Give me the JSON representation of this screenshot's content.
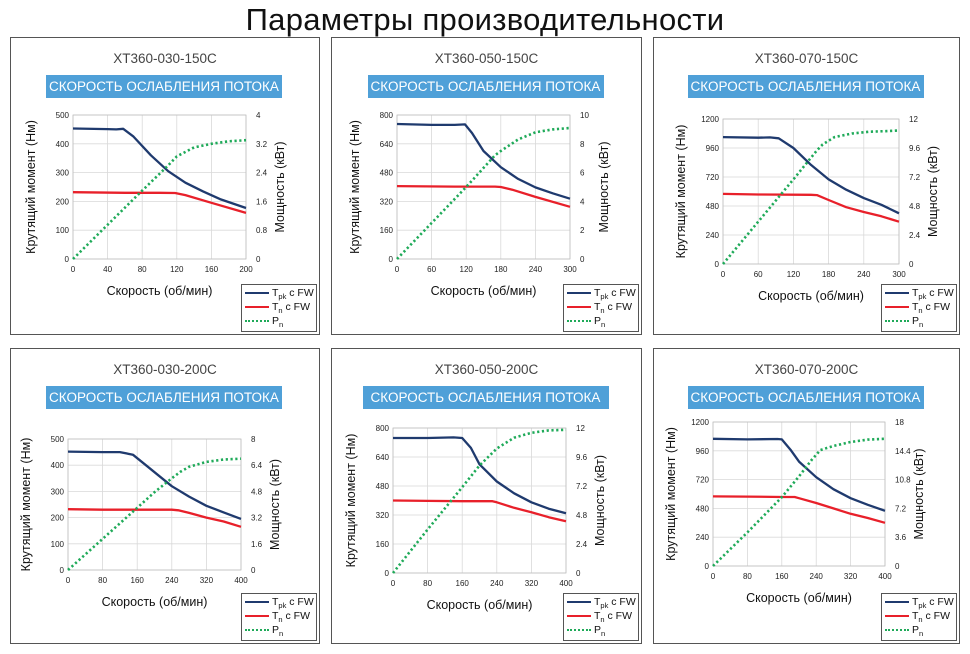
{
  "page": {
    "title": "Параметры производительности"
  },
  "legend": {
    "tpk": "pk",
    "tn": "n",
    "pn": "n",
    "suffix": " с FW",
    "T": "T",
    "P": "P"
  },
  "colors": {
    "tpk": "#1f3a6e",
    "tn": "#e8202a",
    "pn": "#1faa59",
    "banner": "#4fa0d8"
  },
  "chart_data": [
    {
      "type": "line",
      "title": "XT360-030-150C",
      "banner": "СКОРОСТЬ ОСЛАБЛЕНИЯ ПОТОКА",
      "xlabel": "Скорость (об/мин)",
      "ylabel": "Крутящий момент (Нм)",
      "y2label": "Мощность (кВт)",
      "xlim": [
        0,
        200
      ],
      "xticks": [
        0,
        40,
        80,
        120,
        160,
        200
      ],
      "ylim": [
        0,
        500
      ],
      "yticks": [
        0,
        100,
        200,
        300,
        400,
        500
      ],
      "y2lim": [
        0,
        4
      ],
      "y2ticks": [
        "0",
        "0.8",
        "1.6",
        "2.4",
        "3.2",
        "4"
      ],
      "series": [
        {
          "name": "Tpk с FW",
          "axis": "y",
          "x": [
            0,
            40,
            50,
            58,
            70,
            90,
            110,
            130,
            150,
            170,
            200
          ],
          "y": [
            453,
            451,
            450,
            452,
            425,
            360,
            305,
            265,
            235,
            208,
            177
          ]
        },
        {
          "name": "Tn с FW",
          "axis": "y",
          "x": [
            0,
            60,
            100,
            118,
            130,
            160,
            200
          ],
          "y": [
            232,
            230,
            230,
            229,
            222,
            195,
            160
          ]
        },
        {
          "name": "Pn",
          "axis": "y2",
          "x": [
            0,
            40,
            80,
            110,
            120,
            140,
            160,
            180,
            200
          ],
          "y": [
            0,
            0.95,
            1.9,
            2.6,
            2.85,
            3.1,
            3.2,
            3.27,
            3.3
          ]
        }
      ]
    },
    {
      "type": "line",
      "title": "XT360-050-150C",
      "banner": "СКОРОСТЬ ОСЛАБЛЕНИЯ ПОТОКА",
      "xlabel": "Скорость (об/мин)",
      "ylabel": "Крутящий момент (Нм)",
      "y2label": "Мощность (кВт)",
      "xlim": [
        0,
        300
      ],
      "xticks": [
        0,
        60,
        120,
        180,
        240,
        300
      ],
      "ylim": [
        0,
        800
      ],
      "yticks": [
        0,
        160,
        320,
        480,
        640,
        800
      ],
      "y2lim": [
        0,
        10
      ],
      "y2ticks": [
        "0",
        "2",
        "4",
        "6",
        "8",
        "10"
      ],
      "series": [
        {
          "name": "Tpk с FW",
          "axis": "y",
          "x": [
            0,
            60,
            100,
            118,
            130,
            150,
            180,
            210,
            240,
            270,
            300
          ],
          "y": [
            750,
            745,
            745,
            748,
            700,
            600,
            510,
            445,
            398,
            365,
            335
          ]
        },
        {
          "name": "Tn с FW",
          "axis": "y",
          "x": [
            0,
            100,
            170,
            180,
            200,
            240,
            300
          ],
          "y": [
            405,
            402,
            402,
            400,
            385,
            345,
            290
          ]
        },
        {
          "name": "Pn",
          "axis": "y2",
          "x": [
            0,
            60,
            120,
            170,
            180,
            210,
            240,
            270,
            300
          ],
          "y": [
            0,
            2.5,
            5.0,
            7.2,
            7.5,
            8.3,
            8.8,
            9.0,
            9.1
          ]
        }
      ]
    },
    {
      "type": "line",
      "title": "XT360-070-150C",
      "banner": "СКОРОСТЬ ОСЛАБЛЕНИЯ ПОТОКА",
      "xlabel": "Скорость (об/мин)",
      "ylabel": "Крутящий момент (Нм)",
      "y2label": "Мощность (кВт)",
      "xlim": [
        0,
        300
      ],
      "xticks": [
        0,
        60,
        120,
        180,
        240,
        300
      ],
      "ylim": [
        0,
        1200
      ],
      "yticks": [
        0,
        240,
        480,
        720,
        960,
        1200
      ],
      "y2lim": [
        0,
        12
      ],
      "y2ticks": [
        "0",
        "2.4",
        "4.8",
        "7.2",
        "9.6",
        "12"
      ],
      "series": [
        {
          "name": "Tpk с FW",
          "axis": "y",
          "x": [
            0,
            60,
            80,
            95,
            120,
            150,
            180,
            210,
            240,
            270,
            300
          ],
          "y": [
            1050,
            1045,
            1048,
            1040,
            960,
            820,
            700,
            615,
            545,
            490,
            420
          ]
        },
        {
          "name": "Tn с FW",
          "axis": "y",
          "x": [
            0,
            60,
            150,
            160,
            180,
            210,
            240,
            270,
            300
          ],
          "y": [
            580,
            575,
            573,
            570,
            530,
            470,
            430,
            395,
            350
          ]
        },
        {
          "name": "Pn",
          "axis": "y2",
          "x": [
            0,
            60,
            120,
            160,
            170,
            190,
            220,
            250,
            280,
            300
          ],
          "y": [
            0,
            3.5,
            7.0,
            9.4,
            9.9,
            10.5,
            10.8,
            10.95,
            11.0,
            11.05
          ]
        }
      ]
    },
    {
      "type": "line",
      "title": "XT360-030-200C",
      "banner": "СКОРОСТЬ ОСЛАБЛЕНИЯ ПОТОКА",
      "xlabel": "Скорость (об/мин)",
      "ylabel": "Крутящий момент (Нм)",
      "y2label": "Мощность (кВт)",
      "xlim": [
        0,
        400
      ],
      "xticks": [
        0,
        80,
        160,
        240,
        320,
        400
      ],
      "ylim": [
        0,
        500
      ],
      "yticks": [
        0,
        100,
        200,
        300,
        400,
        500
      ],
      "y2lim": [
        0,
        8
      ],
      "y2ticks": [
        "0",
        "1.6",
        "3.2",
        "4.8",
        "6.4",
        "8"
      ],
      "series": [
        {
          "name": "Tpk с FW",
          "axis": "y",
          "x": [
            0,
            80,
            120,
            150,
            180,
            210,
            240,
            280,
            320,
            360,
            400
          ],
          "y": [
            452,
            450,
            450,
            440,
            400,
            360,
            320,
            280,
            245,
            220,
            195
          ]
        },
        {
          "name": "Tn с FW",
          "axis": "y",
          "x": [
            0,
            80,
            160,
            240,
            255,
            280,
            320,
            360,
            400
          ],
          "y": [
            232,
            230,
            230,
            230,
            228,
            218,
            200,
            185,
            165
          ]
        },
        {
          "name": "Pn",
          "axis": "y2",
          "x": [
            0,
            80,
            160,
            200,
            240,
            260,
            280,
            320,
            360,
            400
          ],
          "y": [
            0,
            1.9,
            3.8,
            4.75,
            5.6,
            6.0,
            6.3,
            6.6,
            6.75,
            6.8
          ]
        }
      ]
    },
    {
      "type": "line",
      "title": "XT360-050-200C",
      "banner": "СКОРОСТЬ ОСЛАБЛЕНИЯ ПОТОКА",
      "xlabel": "Скорость (об/мин)",
      "ylabel": "Крутящий момент (Нм)",
      "y2label": "Мощность (кВт)",
      "xlim": [
        0,
        400
      ],
      "xticks": [
        0,
        80,
        160,
        240,
        320,
        400
      ],
      "ylim": [
        0,
        800
      ],
      "yticks": [
        0,
        160,
        320,
        480,
        640,
        800
      ],
      "y2lim": [
        0,
        12
      ],
      "y2ticks": [
        "0",
        "2.4",
        "4.8",
        "7.2",
        "9.6",
        "12"
      ],
      "series": [
        {
          "name": "Tpk с FW",
          "axis": "y",
          "x": [
            0,
            80,
            140,
            160,
            180,
            200,
            240,
            280,
            320,
            360,
            400
          ],
          "y": [
            745,
            745,
            748,
            745,
            690,
            600,
            505,
            440,
            390,
            355,
            330
          ]
        },
        {
          "name": "Tn с FW",
          "axis": "y",
          "x": [
            0,
            80,
            160,
            230,
            240,
            280,
            320,
            360,
            400
          ],
          "y": [
            400,
            398,
            396,
            396,
            390,
            360,
            335,
            308,
            285
          ]
        },
        {
          "name": "Pn",
          "axis": "y2",
          "x": [
            0,
            80,
            160,
            200,
            240,
            280,
            320,
            360,
            400
          ],
          "y": [
            0,
            3.6,
            7.1,
            8.9,
            10.3,
            11.2,
            11.6,
            11.8,
            11.85
          ]
        }
      ]
    },
    {
      "type": "line",
      "title": "XT360-070-200C",
      "banner": "СКОРОСТЬ ОСЛАБЛЕНИЯ ПОТОКА",
      "xlabel": "Скорость (об/мин)",
      "ylabel": "Крутящий момент (Нм)",
      "y2label": "Мощность (кВт)",
      "xlim": [
        0,
        400
      ],
      "xticks": [
        0,
        80,
        160,
        240,
        320,
        400
      ],
      "ylim": [
        0,
        1200
      ],
      "yticks": [
        0,
        240,
        480,
        720,
        960,
        1200
      ],
      "y2lim": [
        0,
        18
      ],
      "y2ticks": [
        "0",
        "3.6",
        "7.2",
        "10.8",
        "14.4",
        "18"
      ],
      "series": [
        {
          "name": "Tpk с FW",
          "axis": "y",
          "x": [
            0,
            80,
            150,
            160,
            180,
            200,
            240,
            280,
            320,
            360,
            400
          ],
          "y": [
            1060,
            1055,
            1058,
            1055,
            970,
            870,
            740,
            640,
            565,
            510,
            460
          ]
        },
        {
          "name": "Tn с FW",
          "axis": "y",
          "x": [
            0,
            80,
            160,
            190,
            200,
            240,
            280,
            320,
            360,
            400
          ],
          "y": [
            580,
            578,
            575,
            575,
            565,
            525,
            480,
            435,
            400,
            360
          ]
        },
        {
          "name": "Pn",
          "axis": "y2",
          "x": [
            0,
            80,
            160,
            200,
            230,
            250,
            280,
            320,
            360,
            400
          ],
          "y": [
            0,
            4.2,
            8.6,
            11.2,
            13.3,
            14.5,
            15.0,
            15.5,
            15.8,
            15.9
          ]
        }
      ]
    }
  ]
}
